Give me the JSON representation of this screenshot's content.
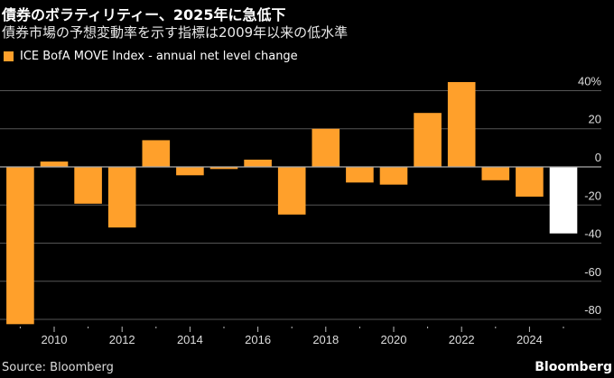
{
  "title": "債券のボラティリティー、2025年に急低下",
  "subtitle": "債券市場の予想変動率を示す指標は2009年以来の低水準",
  "source": "Source: Bloomberg",
  "brand": "Bloomberg",
  "colors": {
    "bar": "#ffa02b",
    "highlight": "#ffffff",
    "grid": "#555555"
  },
  "chart_data": {
    "type": "bar",
    "title": "債券のボラティリティー、2025年に急低下",
    "subtitle": "債券市場の予想変動率を示す指標は2009年以来の低水準",
    "legend": [
      {
        "name": "ICE BofA MOVE Index - annual net level change",
        "color": "#ffa02b"
      }
    ],
    "legend_placement": "top-left",
    "categories": [
      2009,
      2010,
      2011,
      2012,
      2013,
      2014,
      2015,
      2016,
      2017,
      2018,
      2019,
      2020,
      2021,
      2022,
      2023,
      2024,
      2025
    ],
    "series": [
      {
        "name": "ICE BofA MOVE Index - annual net level change",
        "values": [
          -82.5,
          2.8,
          -19.3,
          -31.8,
          14,
          -4.4,
          -1.1,
          3.8,
          -25,
          20,
          -8.2,
          -9.3,
          28.3,
          44.5,
          -7,
          -15.6,
          -34.9
        ]
      }
    ],
    "highlight_category": 2025,
    "ylim": [
      -85,
      48
    ],
    "yticks": [
      40,
      20,
      0,
      -20,
      -40,
      -60,
      -80
    ],
    "ytick_labels": [
      "40%",
      "20",
      "0",
      "-20",
      "-40",
      "-60",
      "-80"
    ],
    "xtick_labels": [
      "2010",
      "2012",
      "2014",
      "2016",
      "2018",
      "2020",
      "2022",
      "2024"
    ],
    "grid": true,
    "y_axis_side": "right"
  }
}
